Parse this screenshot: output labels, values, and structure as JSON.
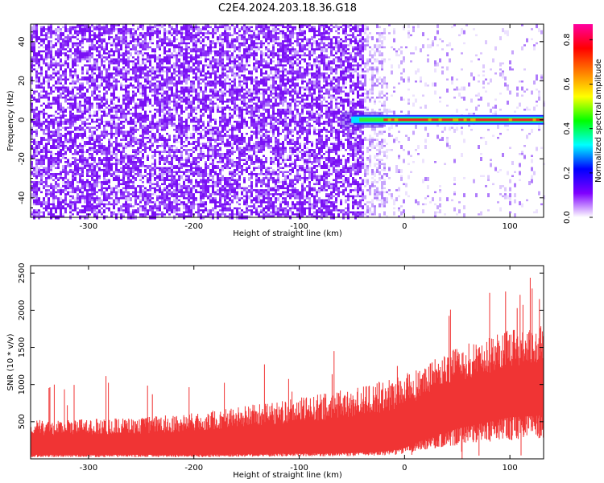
{
  "title": "C2E4.2024.203.18.36.G18",
  "chart_data": [
    {
      "type": "heatmap",
      "xlabel": "Height of straight line (km)",
      "ylabel": "Frequency (Hz)",
      "xlim": [
        -355,
        132
      ],
      "ylim": [
        -50,
        49
      ],
      "xticks": [
        -300,
        -200,
        -100,
        0,
        100
      ],
      "xtick_labels": [
        "-300",
        "-200",
        "-100",
        "0",
        "100"
      ],
      "yticks": [
        -40,
        -20,
        0,
        20,
        40
      ],
      "ytick_labels": [
        "-40",
        "-20",
        "0",
        "20",
        "40"
      ],
      "colorbar": {
        "label": "Normalized spectral amplitude",
        "range": [
          0.0,
          0.87
        ],
        "ticks": [
          0.0,
          0.2,
          0.4,
          0.6,
          0.8
        ],
        "tick_labels": [
          "0.0",
          "0.2",
          "0.4",
          "0.6",
          "0.8"
        ],
        "colors": [
          "#ffffff",
          "#7f00ff",
          "#0000ff",
          "#00ffff",
          "#00ff00",
          "#ffff00",
          "#ff8000",
          "#ff0000",
          "#ff00a0"
        ]
      },
      "features": {
        "noise_dense_until_x": -30,
        "noise_sparse_after_x": -30,
        "signal_band_freq": 0,
        "signal_band_start_x": -60,
        "signal_core_start_x": -20
      }
    },
    {
      "type": "area",
      "xlabel": "Height of straight line (km)",
      "ylabel": "SNR (10 * v/v)",
      "xlim": [
        -355,
        132
      ],
      "ylim": [
        0,
        2600
      ],
      "xticks": [
        -300,
        -200,
        -100,
        0,
        100
      ],
      "xtick_labels": [
        "-300",
        "-200",
        "-100",
        "0",
        "100"
      ],
      "yticks": [
        500,
        1000,
        1500,
        2000,
        2500
      ],
      "ytick_labels": [
        "500",
        "1000",
        "1500",
        "2000",
        "2500"
      ],
      "color": "#f03434",
      "envelope": {
        "x": [
          -355,
          -300,
          -250,
          -200,
          -150,
          -100,
          -50,
          -20,
          0,
          20,
          50,
          80,
          100,
          132
        ],
        "upper": [
          520,
          540,
          560,
          620,
          720,
          820,
          950,
          1050,
          1150,
          1300,
          1500,
          1650,
          1750,
          1800
        ],
        "lower": [
          60,
          60,
          60,
          60,
          70,
          80,
          90,
          110,
          160,
          300,
          450,
          550,
          620,
          650
        ]
      }
    }
  ]
}
